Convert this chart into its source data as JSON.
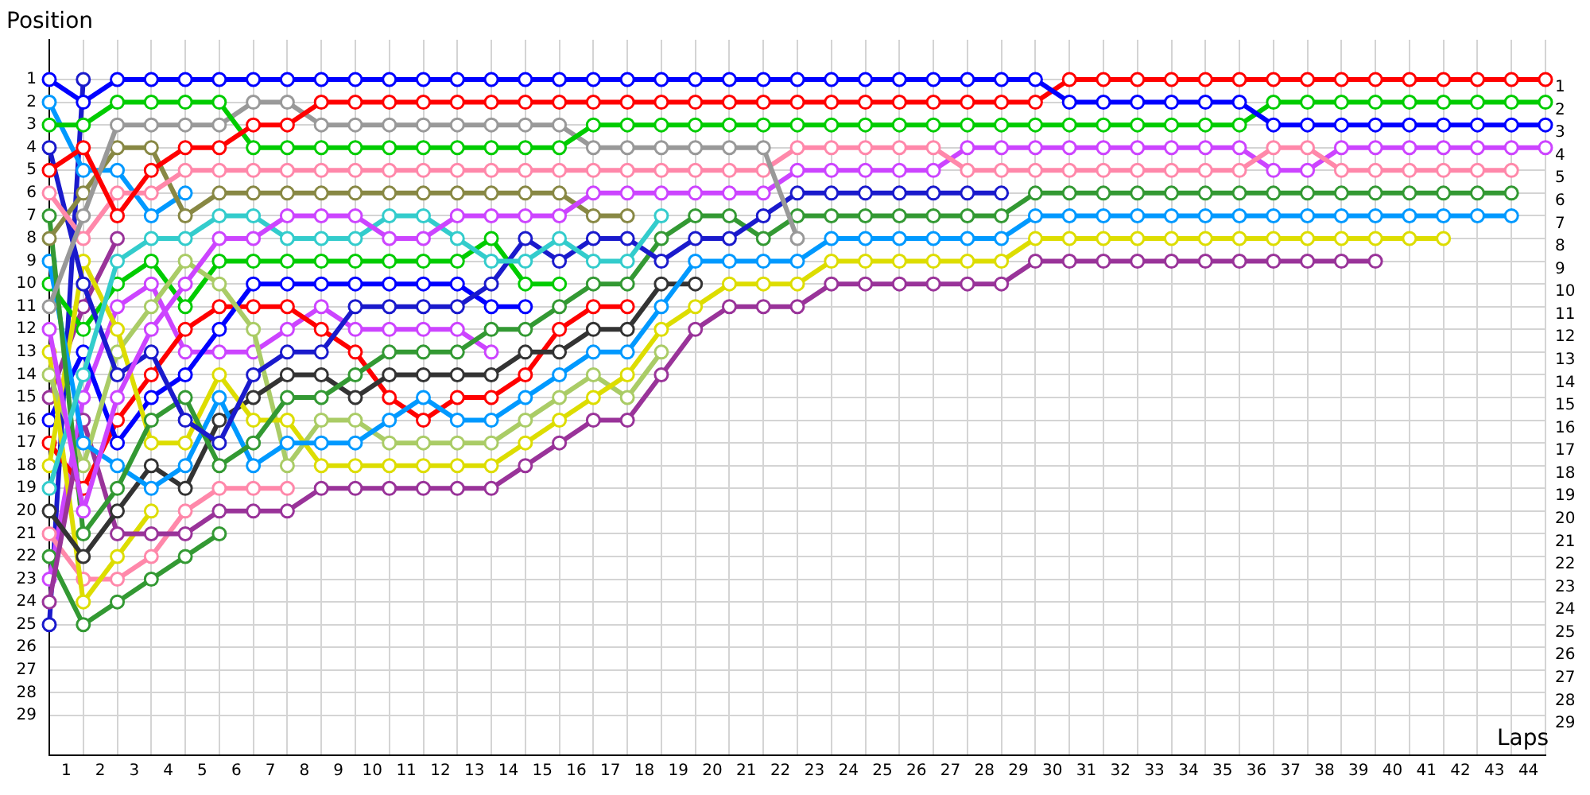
{
  "chart_data": {
    "type": "line",
    "xlabel": "Laps",
    "ylabel": "Position",
    "x": [
      0,
      1,
      2,
      3,
      4,
      5,
      6,
      7,
      8,
      9,
      10,
      11,
      12,
      13,
      14,
      15,
      16,
      17,
      18,
      19,
      20,
      21,
      22,
      23,
      24,
      25,
      26,
      27,
      28,
      29,
      30,
      31,
      32,
      33,
      34,
      35,
      36,
      37,
      38,
      39,
      40,
      41,
      42,
      43,
      44
    ],
    "xlim": [
      0,
      44
    ],
    "xticks": [
      {
        "value": 0.5,
        "label": "1"
      },
      {
        "value": 1,
        "label": null
      },
      {
        "value": 1.5,
        "label": "2"
      },
      {
        "value": 2,
        "label": null
      },
      {
        "value": 2.5,
        "label": "3"
      },
      {
        "value": 3,
        "label": null
      },
      {
        "value": 3.5,
        "label": "4"
      },
      {
        "value": 4,
        "label": null
      },
      {
        "value": 4.5,
        "label": "5"
      },
      {
        "value": 5,
        "label": null
      },
      {
        "value": 5.5,
        "label": "6"
      },
      {
        "value": 6,
        "label": null
      },
      {
        "value": 6.5,
        "label": "7"
      },
      {
        "value": 7,
        "label": null
      },
      {
        "value": 7.5,
        "label": "8"
      },
      {
        "value": 8,
        "label": null
      },
      {
        "value": 8.5,
        "label": "9"
      },
      {
        "value": 9,
        "label": null
      },
      {
        "value": 9.5,
        "label": "10"
      },
      {
        "value": 10,
        "label": null
      },
      {
        "value": 10.5,
        "label": "11"
      },
      {
        "value": 11,
        "label": null
      },
      {
        "value": 11.5,
        "label": "12"
      },
      {
        "value": 12,
        "label": null
      },
      {
        "value": 12.5,
        "label": "13"
      },
      {
        "value": 13,
        "label": null
      },
      {
        "value": 13.5,
        "label": "14"
      },
      {
        "value": 14,
        "label": null
      },
      {
        "value": 14.5,
        "label": "15"
      },
      {
        "value": 15,
        "label": null
      },
      {
        "value": 15.5,
        "label": "16"
      },
      {
        "value": 16,
        "label": null
      },
      {
        "value": 16.5,
        "label": "17"
      },
      {
        "value": 17,
        "label": null
      },
      {
        "value": 17.5,
        "label": "18"
      },
      {
        "value": 18,
        "label": null
      },
      {
        "value": 18.5,
        "label": "19"
      },
      {
        "value": 19,
        "label": null
      },
      {
        "value": 19.5,
        "label": "20"
      },
      {
        "value": 20,
        "label": null
      },
      {
        "value": 20.5,
        "label": "21"
      },
      {
        "value": 21,
        "label": null
      },
      {
        "value": 21.5,
        "label": "22"
      },
      {
        "value": 22,
        "label": null
      },
      {
        "value": 22.5,
        "label": "23"
      },
      {
        "value": 23,
        "label": null
      },
      {
        "value": 23.5,
        "label": "24"
      },
      {
        "value": 24,
        "label": null
      },
      {
        "value": 24.5,
        "label": "25"
      },
      {
        "value": 25,
        "label": null
      },
      {
        "value": 25.5,
        "label": "26"
      },
      {
        "value": 26,
        "label": null
      },
      {
        "value": 26.5,
        "label": "27"
      },
      {
        "value": 27,
        "label": null
      },
      {
        "value": 27.5,
        "label": "28"
      },
      {
        "value": 28,
        "label": null
      },
      {
        "value": 28.5,
        "label": "29"
      },
      {
        "value": 29,
        "label": null
      },
      {
        "value": 29.5,
        "label": "30"
      },
      {
        "value": 30,
        "label": null
      },
      {
        "value": 30.5,
        "label": "31"
      },
      {
        "value": 31,
        "label": null
      },
      {
        "value": 31.5,
        "label": "32"
      },
      {
        "value": 32,
        "label": null
      },
      {
        "value": 32.5,
        "label": "33"
      },
      {
        "value": 33,
        "label": null
      },
      {
        "value": 33.5,
        "label": "34"
      },
      {
        "value": 34,
        "label": null
      },
      {
        "value": 34.5,
        "label": "35"
      },
      {
        "value": 35,
        "label": null
      },
      {
        "value": 35.5,
        "label": "36"
      },
      {
        "value": 36,
        "label": null
      },
      {
        "value": 36.5,
        "label": "37"
      },
      {
        "value": 37,
        "label": null
      },
      {
        "value": 37.5,
        "label": "38"
      },
      {
        "value": 38,
        "label": null
      },
      {
        "value": 38.5,
        "label": "39"
      },
      {
        "value": 39,
        "label": null
      },
      {
        "value": 39.5,
        "label": "40"
      },
      {
        "value": 40,
        "label": null
      },
      {
        "value": 40.5,
        "label": "41"
      },
      {
        "value": 41,
        "label": null
      },
      {
        "value": 41.5,
        "label": "42"
      },
      {
        "value": 42,
        "label": null
      },
      {
        "value": 42.5,
        "label": "43"
      },
      {
        "value": 43,
        "label": null
      },
      {
        "value": 43.5,
        "label": "44"
      },
      {
        "value": 44,
        "label": null
      }
    ],
    "ylim": [
      30.75,
      -0.75
    ],
    "yticks": [
      1,
      2,
      3,
      4,
      5,
      6,
      7,
      8,
      9,
      10,
      11,
      12,
      13,
      14,
      15,
      16,
      17,
      18,
      19,
      20,
      21,
      22,
      23,
      24,
      25,
      26,
      27,
      28,
      29
    ],
    "y2lim": [
      30.75,
      -0.75
    ],
    "y2ticks": [
      1,
      2,
      3,
      4,
      5,
      6,
      7,
      8,
      9,
      10,
      11,
      12,
      13,
      14,
      15,
      16,
      17,
      18,
      19,
      20,
      21,
      22,
      23,
      24,
      25,
      26,
      27,
      28,
      29
    ],
    "grid": true,
    "marker": "circle",
    "line_style": "solid",
    "series": [
      {
        "color": "#0000ff",
        "values": [
          1,
          2,
          1,
          1,
          1,
          1,
          1,
          1,
          1,
          1,
          1,
          1,
          1,
          1,
          1,
          1,
          1,
          1,
          1,
          1,
          1,
          1,
          1,
          1,
          1,
          1,
          1,
          1,
          1,
          1,
          2,
          2,
          2,
          2,
          2,
          2,
          3,
          3,
          3,
          3,
          3,
          3,
          3,
          3,
          3
        ]
      },
      {
        "color": "#ff0000",
        "values": [
          5,
          4,
          7,
          5,
          4,
          4,
          3,
          3,
          2,
          2,
          2,
          2,
          2,
          2,
          2,
          2,
          2,
          2,
          2,
          2,
          2,
          2,
          2,
          2,
          2,
          2,
          2,
          2,
          2,
          2,
          1,
          1,
          1,
          1,
          1,
          1,
          1,
          1,
          1,
          1,
          1,
          1,
          1,
          1,
          1
        ]
      },
      {
        "color": "#00cc00",
        "values": [
          3,
          3,
          2,
          2,
          2,
          2,
          4,
          4,
          4,
          4,
          4,
          4,
          4,
          4,
          4,
          4,
          3,
          3,
          3,
          3,
          3,
          3,
          3,
          3,
          3,
          3,
          3,
          3,
          3,
          3,
          3,
          3,
          3,
          3,
          3,
          3,
          2,
          2,
          2,
          2,
          2,
          2,
          2,
          2,
          2
        ]
      },
      {
        "color": "#999999",
        "values": [
          11,
          7,
          3,
          3,
          3,
          3,
          2,
          2,
          3,
          3,
          3,
          3,
          3,
          3,
          3,
          3,
          4,
          4,
          4,
          4,
          4,
          4,
          8,
          null,
          null,
          null,
          null,
          null,
          null,
          null,
          null,
          null,
          null,
          null,
          null,
          null,
          null,
          null,
          null,
          null,
          null,
          null,
          null,
          null,
          null
        ]
      },
      {
        "color": "#ff88aa",
        "values": [
          6,
          8,
          6,
          6,
          5,
          5,
          5,
          5,
          5,
          5,
          5,
          5,
          5,
          5,
          5,
          5,
          5,
          5,
          5,
          5,
          5,
          5,
          4,
          4,
          4,
          4,
          4,
          5,
          5,
          5,
          5,
          5,
          5,
          5,
          5,
          5,
          4,
          4,
          5,
          5,
          5,
          5,
          5,
          5,
          null
        ]
      },
      {
        "color": "#cc44ff",
        "values": [
          12,
          20,
          15,
          12,
          10,
          8,
          8,
          7,
          7,
          7,
          8,
          8,
          7,
          7,
          7,
          7,
          6,
          6,
          6,
          6,
          6,
          6,
          5,
          5,
          5,
          5,
          5,
          4,
          4,
          4,
          4,
          4,
          4,
          4,
          4,
          4,
          5,
          5,
          4,
          4,
          4,
          4,
          4,
          4,
          4
        ]
      },
      {
        "color": "#33cccc",
        "values": [
          19,
          14,
          9,
          8,
          8,
          7,
          7,
          8,
          8,
          8,
          7,
          7,
          8,
          9,
          9,
          8,
          9,
          9,
          7,
          null,
          null,
          null,
          null,
          null,
          null,
          null,
          null,
          null,
          null,
          null,
          null,
          null,
          null,
          null,
          null,
          null,
          null,
          null,
          null,
          null,
          null,
          null,
          null,
          null,
          null
        ]
      },
      {
        "color": "#888844",
        "values": [
          8,
          6,
          4,
          4,
          7,
          6,
          6,
          6,
          6,
          6,
          6,
          6,
          6,
          6,
          6,
          6,
          7,
          7,
          null,
          null,
          null,
          null,
          null,
          null,
          null,
          null,
          null,
          null,
          null,
          null,
          null,
          null,
          null,
          null,
          null,
          null,
          null,
          null,
          null,
          null,
          null,
          null,
          null,
          null,
          null
        ]
      },
      {
        "color": "#1a1acc",
        "values": [
          4,
          10,
          14,
          13,
          16,
          17,
          14,
          13,
          13,
          11,
          11,
          11,
          11,
          10,
          8,
          9,
          8,
          8,
          9,
          8,
          8,
          7,
          6,
          6,
          6,
          6,
          6,
          6,
          6,
          null,
          null,
          null,
          null,
          null,
          null,
          null,
          null,
          null,
          null,
          null,
          null,
          null,
          null,
          null,
          null
        ]
      },
      {
        "color": "#339933",
        "values": [
          7,
          21,
          19,
          16,
          15,
          18,
          17,
          15,
          15,
          14,
          13,
          13,
          13,
          12,
          12,
          11,
          10,
          10,
          8,
          7,
          7,
          8,
          7,
          7,
          7,
          7,
          7,
          7,
          7,
          6,
          6,
          6,
          6,
          6,
          6,
          6,
          6,
          6,
          6,
          6,
          6,
          6,
          6,
          6,
          null
        ]
      },
      {
        "color": "#0099ff",
        "values": [
          9,
          17,
          18,
          19,
          18,
          15,
          18,
          17,
          17,
          17,
          16,
          15,
          16,
          16,
          15,
          14,
          13,
          13,
          11,
          9,
          9,
          9,
          9,
          8,
          8,
          8,
          8,
          8,
          8,
          7,
          7,
          7,
          7,
          7,
          7,
          7,
          7,
          7,
          7,
          7,
          7,
          7,
          7,
          7,
          null
        ]
      },
      {
        "color": "#dddd00",
        "values": [
          18,
          9,
          12,
          17,
          17,
          14,
          16,
          16,
          18,
          18,
          18,
          18,
          18,
          18,
          17,
          16,
          15,
          14,
          12,
          11,
          10,
          10,
          10,
          9,
          9,
          9,
          9,
          9,
          9,
          8,
          8,
          8,
          8,
          8,
          8,
          8,
          8,
          8,
          8,
          8,
          8,
          8,
          null,
          null,
          null
        ]
      },
      {
        "color": "#333333",
        "values": [
          20,
          22,
          20,
          18,
          19,
          16,
          15,
          14,
          14,
          15,
          14,
          14,
          14,
          14,
          13,
          13,
          12,
          12,
          10,
          10,
          null,
          null,
          null,
          null,
          null,
          null,
          null,
          null,
          null,
          null,
          null,
          null,
          null,
          null,
          null,
          null,
          null,
          null,
          null,
          null,
          null,
          null,
          null,
          null,
          null
        ]
      },
      {
        "color": "#aacc66",
        "values": [
          14,
          18,
          13,
          11,
          9,
          10,
          12,
          18,
          16,
          16,
          17,
          17,
          17,
          17,
          16,
          15,
          14,
          15,
          13,
          null,
          null,
          null,
          null,
          null,
          null,
          null,
          null,
          null,
          null,
          null,
          null,
          null,
          null,
          null,
          null,
          null,
          null,
          null,
          null,
          null,
          null,
          null,
          null,
          null,
          null
        ]
      },
      {
        "color": "#993399",
        "values": [
          24,
          16,
          21,
          21,
          21,
          20,
          20,
          20,
          19,
          19,
          19,
          19,
          19,
          19,
          18,
          17,
          16,
          16,
          14,
          12,
          11,
          11,
          11,
          10,
          10,
          10,
          10,
          10,
          10,
          9,
          9,
          9,
          9,
          9,
          9,
          9,
          9,
          9,
          9,
          9,
          null,
          null,
          null,
          null,
          null
        ]
      },
      {
        "color": "#0099ff",
        "values": [
          2,
          5,
          5,
          7,
          6,
          null,
          null,
          null,
          null,
          null,
          null,
          null,
          null,
          null,
          null,
          null,
          null,
          null,
          null,
          null,
          null,
          null,
          null,
          null,
          null,
          null,
          null,
          null,
          null,
          null,
          null,
          null,
          null,
          null,
          null,
          null,
          null,
          null,
          null,
          null,
          null,
          null,
          null,
          null,
          null
        ]
      },
      {
        "color": "#00cc00",
        "values": [
          10,
          12,
          10,
          9,
          11,
          9,
          9,
          9,
          9,
          9,
          9,
          9,
          9,
          8,
          10,
          10,
          null,
          null,
          null,
          null,
          null,
          null,
          null,
          null,
          null,
          null,
          null,
          null,
          null,
          null,
          null,
          null,
          null,
          null,
          null,
          null,
          null,
          null,
          null,
          null,
          null,
          null,
          null,
          null,
          null
        ]
      },
      {
        "color": "#dddd00",
        "values": [
          13,
          24,
          22,
          20,
          null,
          null,
          null,
          null,
          null,
          null,
          null,
          null,
          null,
          null,
          null,
          null,
          null,
          null,
          null,
          null,
          null,
          null,
          null,
          null,
          null,
          null,
          null,
          null,
          null,
          null,
          null,
          null,
          null,
          null,
          null,
          null,
          null,
          null,
          null,
          null,
          null,
          null,
          null,
          null,
          null
        ]
      },
      {
        "color": "#993399",
        "values": [
          15,
          11,
          8,
          null,
          null,
          null,
          null,
          null,
          null,
          null,
          null,
          null,
          null,
          null,
          null,
          null,
          null,
          null,
          null,
          null,
          null,
          null,
          null,
          null,
          null,
          null,
          null,
          null,
          null,
          null,
          null,
          null,
          null,
          null,
          null,
          null,
          null,
          null,
          null,
          null,
          null,
          null,
          null,
          null,
          null
        ]
      },
      {
        "color": "#0000ff",
        "values": [
          16,
          13,
          17,
          15,
          14,
          12,
          10,
          10,
          10,
          10,
          10,
          10,
          10,
          11,
          11,
          null,
          null,
          null,
          null,
          null,
          null,
          null,
          null,
          null,
          null,
          null,
          null,
          null,
          null,
          null,
          null,
          null,
          null,
          null,
          null,
          null,
          null,
          null,
          null,
          null,
          null,
          null,
          null,
          null,
          null
        ]
      },
      {
        "color": "#ff0000",
        "values": [
          17,
          19,
          16,
          14,
          12,
          11,
          11,
          11,
          12,
          13,
          15,
          16,
          15,
          15,
          14,
          12,
          11,
          11,
          null,
          null,
          null,
          null,
          null,
          null,
          null,
          null,
          null,
          null,
          null,
          null,
          null,
          null,
          null,
          null,
          null,
          null,
          null,
          null,
          null,
          null,
          null,
          null,
          null,
          null,
          null
        ]
      },
      {
        "color": "#ff88aa",
        "values": [
          21,
          23,
          23,
          22,
          20,
          19,
          19,
          19,
          null,
          null,
          null,
          null,
          null,
          null,
          null,
          null,
          null,
          null,
          null,
          null,
          null,
          null,
          null,
          null,
          null,
          null,
          null,
          null,
          null,
          null,
          null,
          null,
          null,
          null,
          null,
          null,
          null,
          null,
          null,
          null,
          null,
          null,
          null,
          null,
          null
        ]
      },
      {
        "color": "#339933",
        "values": [
          22,
          25,
          24,
          23,
          22,
          21,
          null,
          null,
          null,
          null,
          null,
          null,
          null,
          null,
          null,
          null,
          null,
          null,
          null,
          null,
          null,
          null,
          null,
          null,
          null,
          null,
          null,
          null,
          null,
          null,
          null,
          null,
          null,
          null,
          null,
          null,
          null,
          null,
          null,
          null,
          null,
          null,
          null,
          null,
          null
        ]
      },
      {
        "color": "#cc44ff",
        "values": [
          23,
          15,
          11,
          10,
          13,
          13,
          13,
          12,
          11,
          12,
          12,
          12,
          12,
          13,
          null,
          null,
          null,
          null,
          null,
          null,
          null,
          null,
          null,
          null,
          null,
          null,
          null,
          null,
          null,
          null,
          null,
          null,
          null,
          null,
          null,
          null,
          null,
          null,
          null,
          null,
          null,
          null,
          null,
          null,
          null
        ]
      },
      {
        "color": "#1a1acc",
        "values": [
          25,
          1,
          null,
          null,
          null,
          null,
          null,
          null,
          null,
          null,
          null,
          null,
          null,
          null,
          null,
          null,
          null,
          null,
          null,
          null,
          null,
          null,
          null,
          null,
          null,
          null,
          null,
          null,
          null,
          null,
          null,
          null,
          null,
          null,
          null,
          null,
          null,
          null,
          null,
          null,
          null,
          null,
          null,
          null,
          null
        ]
      }
    ]
  }
}
